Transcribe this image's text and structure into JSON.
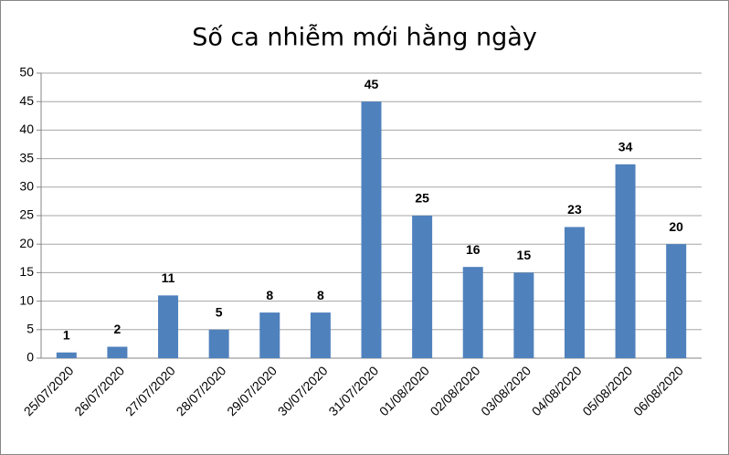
{
  "chart_data": {
    "type": "bar",
    "title": "Số ca nhiễm mới hằng ngày",
    "categories": [
      "25/07/2020",
      "26/07/2020",
      "27/07/2020",
      "28/07/2020",
      "29/07/2020",
      "30/07/2020",
      "31/07/2020",
      "01/08/2020",
      "02/08/2020",
      "03/08/2020",
      "04/08/2020",
      "05/08/2020",
      "06/08/2020"
    ],
    "values": [
      1,
      2,
      11,
      5,
      8,
      8,
      45,
      25,
      16,
      15,
      23,
      34,
      20
    ],
    "color": "#4f81bd",
    "ylim": [
      0,
      50
    ],
    "yticks": [
      0,
      5,
      10,
      15,
      20,
      25,
      30,
      35,
      40,
      45,
      50
    ],
    "grid": true
  }
}
